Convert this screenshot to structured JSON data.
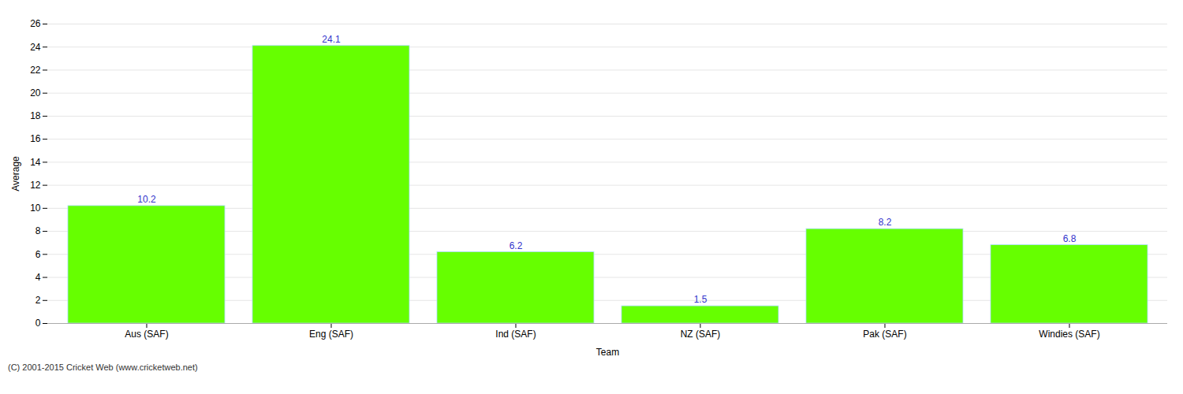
{
  "chart_data": {
    "type": "bar",
    "categories": [
      "Aus (SAF)",
      "Eng (SAF)",
      "Ind (SAF)",
      "NZ (SAF)",
      "Pak (SAF)",
      "Windies (SAF)"
    ],
    "values": [
      10.2,
      24.1,
      6.2,
      1.5,
      8.2,
      6.8
    ],
    "color": "#66ff00",
    "xlabel": "Team",
    "ylabel": "Average",
    "ylim": [
      0,
      26
    ],
    "yticks": [
      0,
      2,
      4,
      6,
      8,
      10,
      12,
      14,
      16,
      18,
      20,
      22,
      24,
      26
    ],
    "grid": true,
    "data_labels": true,
    "caption": "(C) 2001-2015 Cricket Web (www.cricketweb.net)"
  }
}
